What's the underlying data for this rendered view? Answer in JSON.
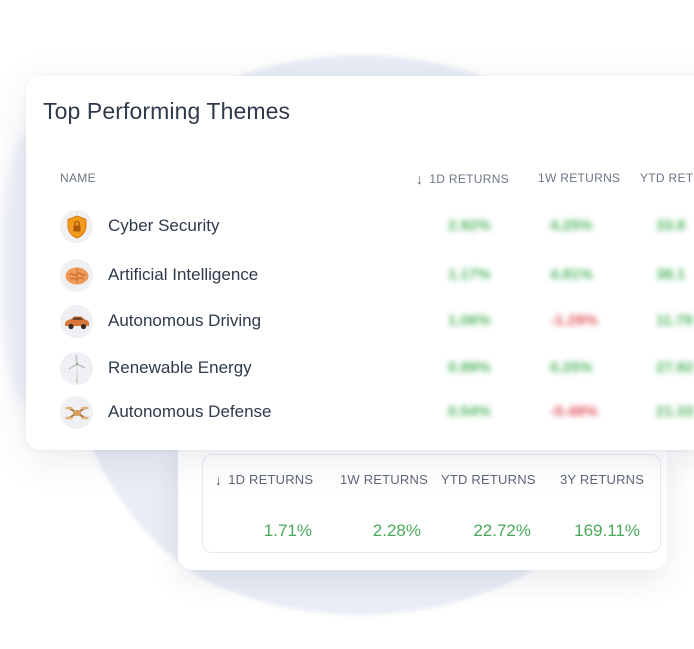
{
  "title": "Top Performing Themes",
  "columns": {
    "name": "NAME",
    "d1": "1D RETURNS",
    "w1": "1W RETURNS",
    "ytd": "YTD RET"
  },
  "themes": [
    {
      "name": "Cyber Security",
      "icon": "shield-lock-icon",
      "d1": "2.92%",
      "w1": "4.25%",
      "ytd": "33.8"
    },
    {
      "name": "Artificial Intelligence",
      "icon": "brain-icon",
      "d1": "1.17%",
      "w1": "4.81%",
      "ytd": "38.1"
    },
    {
      "name": "Autonomous Driving",
      "icon": "car-icon",
      "d1": "1.06%",
      "w1": "-1.29%",
      "ytd": "11.79"
    },
    {
      "name": "Renewable Energy",
      "icon": "wind-turbine-icon",
      "d1": "0.99%",
      "w1": "0.25%",
      "ytd": "27.82"
    },
    {
      "name": "Autonomous Defense",
      "icon": "drone-icon",
      "d1": "0.54%",
      "w1": "-0.48%",
      "ytd": "21.33"
    }
  ],
  "summary": {
    "headers": {
      "d1": "1D RETURNS",
      "w1": "1W RETURNS",
      "ytd": "YTD RETURNS",
      "y3": "3Y RETURNS"
    },
    "values": {
      "d1": "1.71%",
      "w1": "2.28%",
      "ytd": "22.72%",
      "y3": "169.11%"
    }
  },
  "colors": {
    "positive": "#4db35e",
    "negative": "#e0525a",
    "text": "#2e3a4b"
  }
}
